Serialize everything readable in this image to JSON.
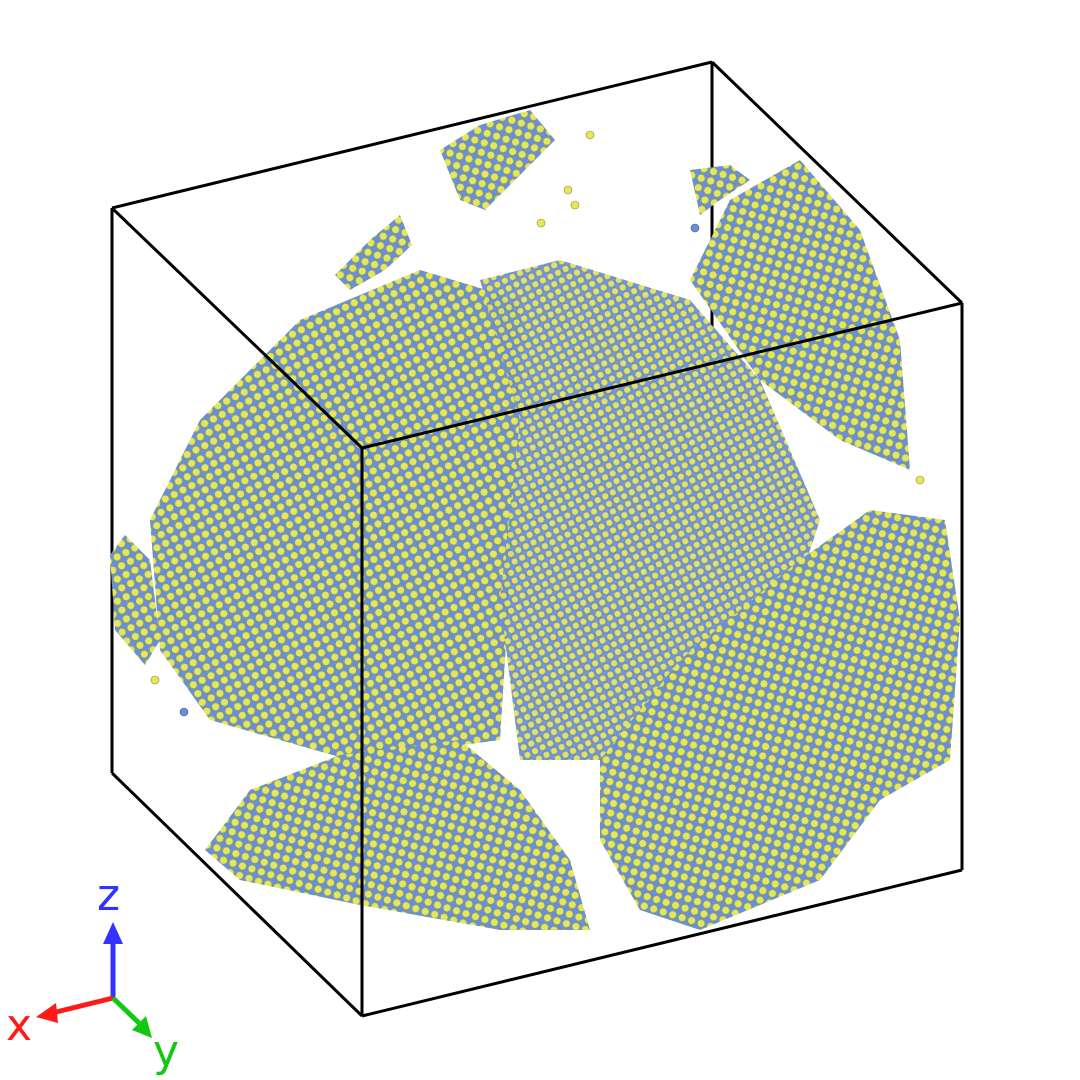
{
  "axes": {
    "x": {
      "label": "x",
      "color": "#ff1a1a"
    },
    "y": {
      "label": "y",
      "color": "#12c912"
    },
    "z": {
      "label": "z",
      "color": "#3333ff"
    }
  },
  "atom_colors": {
    "species_a": "#e6e65c",
    "species_b": "#6b8fd6"
  },
  "cell": {
    "edge_color": "#000000"
  }
}
